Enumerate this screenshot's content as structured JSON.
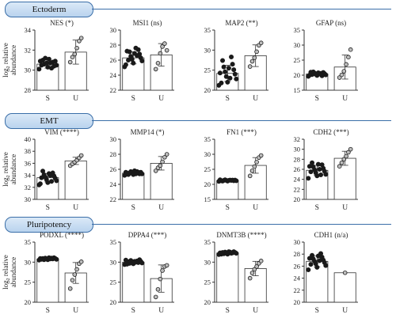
{
  "sections": [
    {
      "label": "Ectoderm"
    },
    {
      "label": "EMT"
    },
    {
      "label": "Pluripotency"
    }
  ],
  "ylabel": [
    "log",
    "relative",
    "abundance"
  ],
  "colors": {
    "dot": "#1a1a1a",
    "bar": "#ffffff",
    "axis": "#333333",
    "pill_border": "#3a6ea8"
  },
  "chart_data": [
    {
      "type": "bar",
      "row": 0,
      "col": 0,
      "title": "NES (*)",
      "categories": [
        "S",
        "U"
      ],
      "ylim": [
        28,
        34
      ],
      "yticks": [
        28,
        30,
        32,
        34
      ],
      "values": [
        30.6,
        31.8
      ],
      "sd": [
        0.4,
        1.2
      ],
      "points": [
        [
          30.1,
          30.3,
          30.5,
          30.7,
          30.9,
          31.2,
          30.4,
          30.6,
          30.8,
          31.0,
          30.2,
          30.5,
          30.7,
          30.9,
          31.1
        ],
        [
          30.8,
          31.3,
          31.6,
          32.2,
          32.9,
          33.2
        ]
      ]
    },
    {
      "type": "bar",
      "row": 0,
      "col": 1,
      "title": "MSI1 (ns)",
      "categories": [
        "S",
        "U"
      ],
      "ylim": [
        22,
        30
      ],
      "yticks": [
        22,
        24,
        26,
        28,
        30
      ],
      "values": [
        26.3,
        26.7
      ],
      "sd": [
        0.8,
        1.5
      ],
      "points": [
        [
          25.1,
          25.6,
          25.9,
          26.1,
          26.3,
          26.5,
          26.8,
          27.1,
          27.4,
          26.0,
          26.6,
          27.2,
          27.6,
          25.4,
          26.9
        ],
        [
          24.8,
          25.6,
          26.9,
          27.8,
          28.2,
          27.3
        ]
      ]
    },
    {
      "type": "bar",
      "row": 0,
      "col": 2,
      "title": "MAP2 (**)",
      "categories": [
        "S",
        "U"
      ],
      "ylim": [
        20,
        35
      ],
      "yticks": [
        20,
        25,
        30,
        35
      ],
      "values": [
        24.2,
        28.6
      ],
      "sd": [
        2.0,
        2.7
      ],
      "points": [
        [
          21.2,
          22.0,
          22.8,
          23.4,
          24.0,
          24.6,
          25.1,
          25.8,
          26.5,
          27.4,
          28.3,
          21.8,
          23.0,
          24.3,
          25.5
        ],
        [
          25.9,
          27.2,
          28.1,
          29.6,
          31.2,
          31.8
        ]
      ]
    },
    {
      "type": "bar",
      "row": 0,
      "col": 3,
      "title": "GFAP (ns)",
      "categories": [
        "S",
        "U"
      ],
      "ylim": [
        15,
        35
      ],
      "yticks": [
        15,
        20,
        25,
        30,
        35
      ],
      "values": [
        20.4,
        22.7
      ],
      "sd": [
        0.6,
        4.0
      ],
      "points": [
        [
          19.6,
          19.9,
          20.1,
          20.3,
          20.5,
          20.7,
          20.9,
          21.1,
          19.8,
          20.2,
          20.6,
          21.0,
          20.4,
          20.0,
          20.8
        ],
        [
          19.2,
          20.1,
          21.3,
          23.6,
          26.0,
          28.5
        ]
      ]
    },
    {
      "type": "bar",
      "row": 1,
      "col": 0,
      "title": "VIM (****)",
      "categories": [
        "S",
        "U"
      ],
      "ylim": [
        30,
        40
      ],
      "yticks": [
        30,
        32,
        34,
        36,
        38,
        40
      ],
      "values": [
        33.6,
        36.4
      ],
      "sd": [
        0.7,
        0.6
      ],
      "points": [
        [
          32.4,
          32.8,
          33.1,
          33.3,
          33.5,
          33.7,
          33.9,
          34.1,
          34.4,
          34.7,
          33.0,
          33.6,
          34.0,
          32.6,
          34.3
        ],
        [
          35.6,
          35.9,
          36.2,
          36.5,
          36.9,
          37.3
        ]
      ]
    },
    {
      "type": "bar",
      "row": 1,
      "col": 1,
      "title": "MMP14 (*)",
      "categories": [
        "S",
        "U"
      ],
      "ylim": [
        22,
        30
      ],
      "yticks": [
        22,
        24,
        26,
        28,
        30
      ],
      "values": [
        25.5,
        26.8
      ],
      "sd": [
        0.2,
        0.9
      ],
      "points": [
        [
          25.2,
          25.3,
          25.4,
          25.5,
          25.6,
          25.7,
          25.4,
          25.5,
          25.6,
          25.3,
          25.7,
          25.5,
          25.4,
          25.6,
          25.8
        ],
        [
          25.8,
          26.2,
          26.5,
          27.0,
          27.6,
          28.0
        ]
      ]
    },
    {
      "type": "bar",
      "row": 1,
      "col": 2,
      "title": "FN1 (***)",
      "categories": [
        "S",
        "U"
      ],
      "ylim": [
        15,
        35
      ],
      "yticks": [
        15,
        20,
        25,
        30,
        35
      ],
      "values": [
        21.3,
        26.3
      ],
      "sd": [
        0.2,
        2.6
      ],
      "points": [
        [
          21.0,
          21.1,
          21.2,
          21.3,
          21.4,
          21.5,
          21.2,
          21.3,
          21.4,
          21.1,
          21.3,
          21.2,
          21.4,
          21.5,
          21.3
        ],
        [
          22.8,
          24.5,
          25.9,
          27.4,
          28.9,
          29.6
        ]
      ]
    },
    {
      "type": "bar",
      "row": 1,
      "col": 3,
      "title": "CDH2 (***)",
      "categories": [
        "S",
        "U"
      ],
      "ylim": [
        20,
        32
      ],
      "yticks": [
        20,
        22,
        24,
        26,
        28,
        30,
        32
      ],
      "values": [
        25.8,
        28.2
      ],
      "sd": [
        1.0,
        1.4
      ],
      "points": [
        [
          24.2,
          24.7,
          25.0,
          25.3,
          25.6,
          25.9,
          26.2,
          26.5,
          26.9,
          27.3,
          24.9,
          25.5,
          26.0,
          26.6,
          27.0
        ],
        [
          26.6,
          27.3,
          28.0,
          28.6,
          29.4,
          30.0
        ]
      ]
    },
    {
      "type": "bar",
      "row": 2,
      "col": 0,
      "title": "PODXL (****)",
      "categories": [
        "S",
        "U"
      ],
      "ylim": [
        20,
        35
      ],
      "yticks": [
        20,
        25,
        30,
        35
      ],
      "values": [
        30.8,
        27.3
      ],
      "sd": [
        0.3,
        2.6
      ],
      "points": [
        [
          30.5,
          30.6,
          30.7,
          30.8,
          30.9,
          31.0,
          31.1,
          30.6,
          30.8,
          30.9,
          31.0,
          30.7,
          30.8,
          30.9,
          31.1
        ],
        [
          23.4,
          25.5,
          26.9,
          28.2,
          29.6,
          30.1
        ]
      ]
    },
    {
      "type": "bar",
      "row": 2,
      "col": 1,
      "title": "DPPA4 (***)",
      "categories": [
        "S",
        "U"
      ],
      "ylim": [
        20,
        35
      ],
      "yticks": [
        20,
        25,
        30,
        35
      ],
      "values": [
        30.0,
        25.9
      ],
      "sd": [
        0.5,
        3.4
      ],
      "points": [
        [
          29.4,
          29.6,
          29.8,
          30.0,
          30.2,
          30.4,
          30.6,
          29.7,
          29.9,
          30.1,
          30.3,
          29.5,
          30.0,
          30.5,
          30.2
        ],
        [
          21.3,
          23.2,
          25.8,
          27.9,
          28.9,
          29.2
        ]
      ]
    },
    {
      "type": "bar",
      "row": 2,
      "col": 2,
      "title": "DNMT3B (****)",
      "categories": [
        "S",
        "U"
      ],
      "ylim": [
        20,
        35
      ],
      "yticks": [
        20,
        25,
        30,
        35
      ],
      "values": [
        32.3,
        28.4
      ],
      "sd": [
        0.4,
        1.8
      ],
      "points": [
        [
          31.9,
          32.0,
          32.2,
          32.3,
          32.4,
          32.5,
          32.6,
          32.1,
          32.3,
          32.4,
          32.2,
          32.0,
          32.5,
          32.3,
          32.6
        ],
        [
          26.0,
          27.3,
          28.2,
          28.9,
          29.7,
          30.3
        ]
      ]
    },
    {
      "type": "bar",
      "row": 2,
      "col": 3,
      "title": "CDH1 (n/a)",
      "categories": [
        "S",
        "U"
      ],
      "ylim": [
        20,
        30
      ],
      "yticks": [
        20,
        22,
        24,
        26,
        28,
        30
      ],
      "values": [
        26.8,
        24.9
      ],
      "sd": [
        0.9,
        0
      ],
      "points": [
        [
          25.4,
          25.8,
          26.1,
          26.4,
          26.6,
          26.8,
          27.0,
          27.2,
          27.5,
          27.8,
          28.1,
          26.3,
          26.9,
          27.3,
          27.7
        ],
        [
          24.9
        ]
      ]
    }
  ]
}
